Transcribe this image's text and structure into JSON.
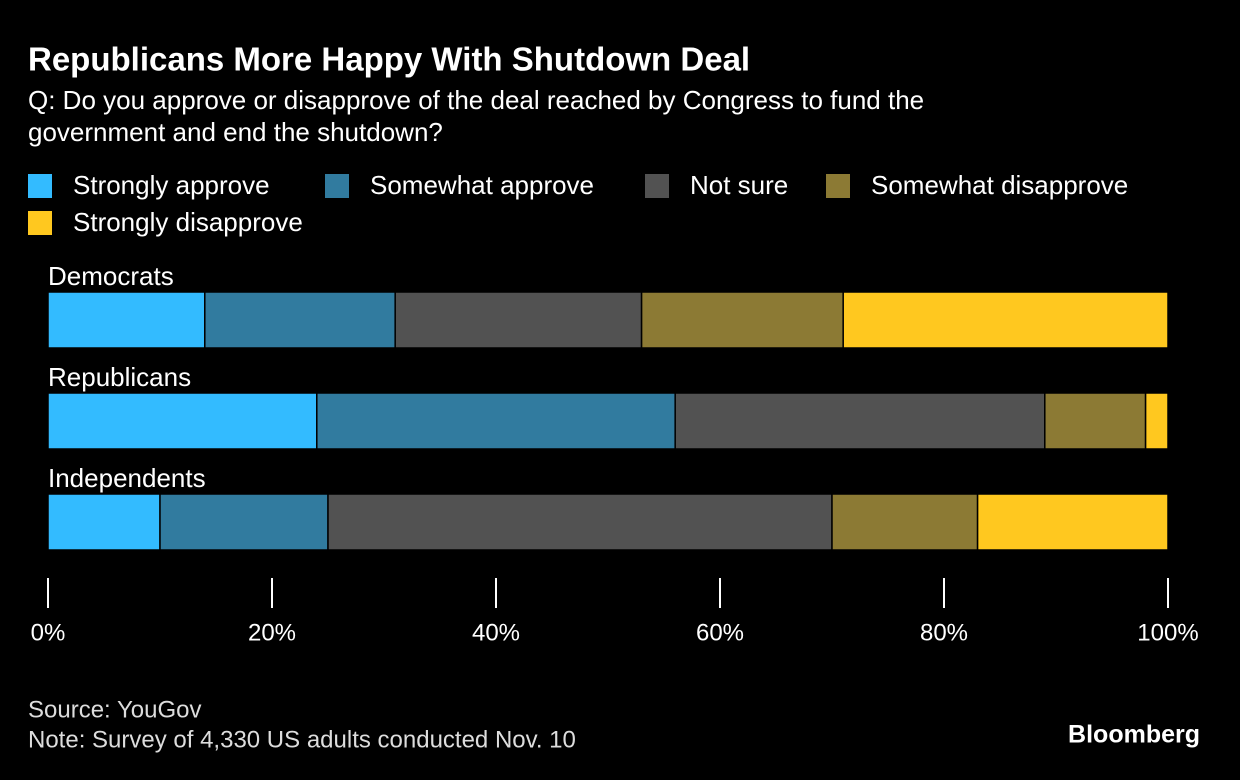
{
  "chart_data": {
    "type": "bar",
    "title": "Republicans More Happy With Shutdown Deal",
    "subtitle": [
      "Q: Do you approve or disapprove of the deal reached by Congress to fund the",
      "government and end the shutdown?"
    ],
    "categories": [
      "Democrats",
      "Republicans",
      "Independents"
    ],
    "series": [
      {
        "name": "Strongly approve",
        "color": "#33bbff",
        "values": [
          14,
          24,
          10
        ]
      },
      {
        "name": "Somewhat approve",
        "color": "#317b9f",
        "values": [
          17,
          32,
          15
        ]
      },
      {
        "name": "Not sure",
        "color": "#525252",
        "values": [
          22,
          33,
          45
        ]
      },
      {
        "name": "Somewhat disapprove",
        "color": "#8c7a34",
        "values": [
          18,
          9,
          13
        ]
      },
      {
        "name": "Strongly disapprove",
        "color": "#ffc81f",
        "values": [
          29,
          2,
          17
        ]
      }
    ],
    "xlim": [
      0,
      100
    ],
    "xticks": [
      {
        "value": 0,
        "label": "0%"
      },
      {
        "value": 20,
        "label": "20%"
      },
      {
        "value": 40,
        "label": "40%"
      },
      {
        "value": 60,
        "label": "60%"
      },
      {
        "value": 80,
        "label": "80%"
      },
      {
        "value": 100,
        "label": "100%"
      }
    ],
    "source": "Source: YouGov",
    "note": "Note: Survey of 4,330 US adults conducted Nov. 10",
    "brand": "Bloomberg"
  }
}
